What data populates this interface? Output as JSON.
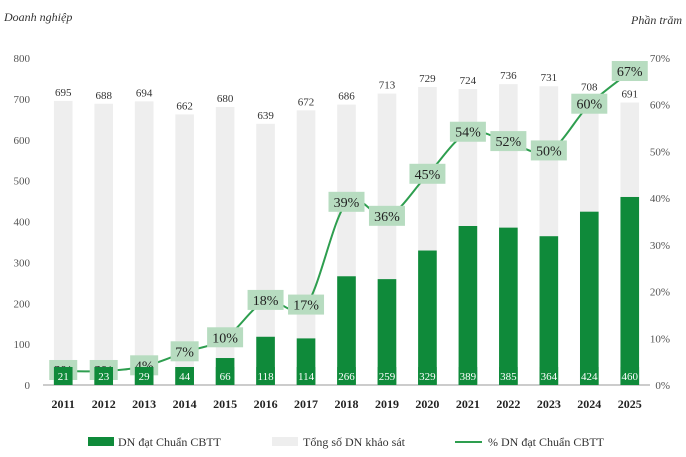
{
  "chart_data": {
    "type": "bar",
    "left_axis_title": "Doanh nghiệp",
    "right_axis_title": "Phần trăm",
    "categories": [
      "2011",
      "2012",
      "2013",
      "2014",
      "2015",
      "2016",
      "2017",
      "2018",
      "2019",
      "2020",
      "2021",
      "2022",
      "2023",
      "2024",
      "2025"
    ],
    "left_ticks": [
      "0",
      "100",
      "200",
      "300",
      "400",
      "500",
      "600",
      "700",
      "800"
    ],
    "right_ticks": [
      "0%",
      "10%",
      "20%",
      "30%",
      "40%",
      "50%",
      "60%",
      "70%"
    ],
    "ylim_left": [
      0,
      800
    ],
    "ylim_right": [
      0,
      70
    ],
    "series": [
      {
        "name": "Tổng số DN khảo sát",
        "kind": "bar",
        "axis": "left",
        "color": "#eeeeee",
        "values": [
          695,
          688,
          694,
          662,
          680,
          639,
          672,
          686,
          713,
          729,
          724,
          736,
          731,
          708,
          691
        ],
        "labels": [
          "695",
          "688",
          "694",
          "662",
          "680",
          "639",
          "672",
          "686",
          "713",
          "729",
          "724",
          "736",
          "731",
          "708",
          "691"
        ]
      },
      {
        "name": "DN đạt Chuẩn CBTT",
        "kind": "bar",
        "axis": "left",
        "color": "#0f8a3a",
        "values": [
          21,
          23,
          29,
          44,
          66,
          118,
          114,
          266,
          259,
          329,
          389,
          385,
          364,
          424,
          460
        ],
        "labels": [
          "21",
          "23",
          "29",
          "44",
          "66",
          "118",
          "114",
          "266",
          "259",
          "329",
          "389",
          "385",
          "364",
          "424",
          "460"
        ]
      },
      {
        "name": "% DN đạt Chuẩn CBTT",
        "kind": "line",
        "axis": "right",
        "color": "#2e9e4f",
        "values": [
          3,
          3,
          4,
          7,
          10,
          18,
          17,
          39,
          36,
          45,
          54,
          52,
          50,
          60,
          67
        ],
        "labels": [
          "3%",
          "3%",
          "4%",
          "7%",
          "10%",
          "18%",
          "17%",
          "39%",
          "36%",
          "45%",
          "54%",
          "52%",
          "50%",
          "60%",
          "67%"
        ]
      }
    ],
    "legend": {
      "placement": "bottom"
    },
    "colors": {
      "label_box": "#b7dcc0",
      "axis_text": "#555555"
    }
  }
}
